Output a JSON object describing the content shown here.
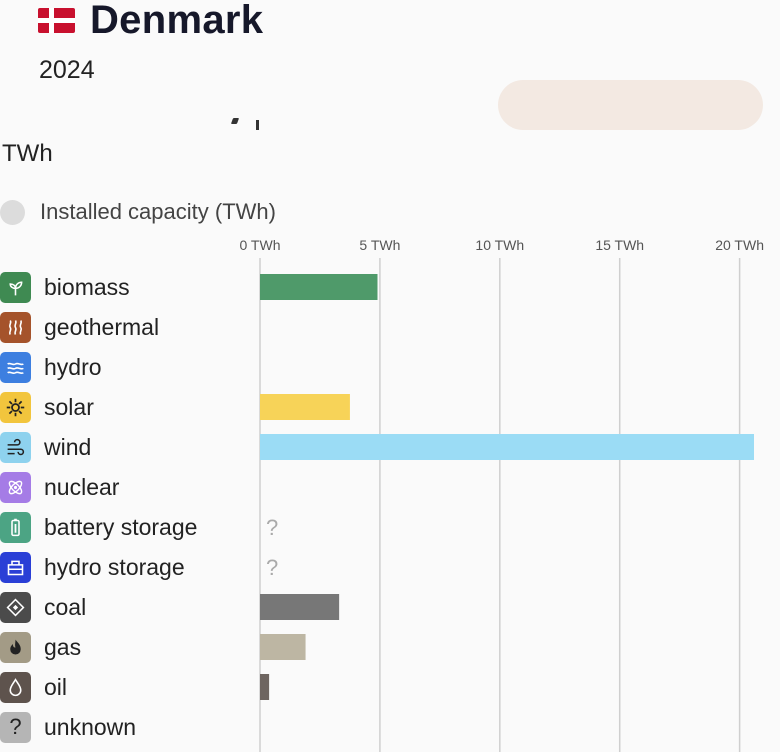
{
  "header": {
    "country": "Denmark",
    "year": "2024",
    "flag_colors": {
      "red": "#c8102e",
      "white": "#ffffff"
    }
  },
  "unit_label": "TWh",
  "legend": {
    "label": "Installed capacity (TWh)",
    "color": "#dcdcdc"
  },
  "chart_data": {
    "type": "bar",
    "orientation": "horizontal",
    "x_ticks": [
      {
        "value": 0,
        "label": "0 TWh"
      },
      {
        "value": 5,
        "label": "5 TWh"
      },
      {
        "value": 10,
        "label": "10 TWh"
      },
      {
        "value": 15,
        "label": "15 TWh"
      },
      {
        "value": 20,
        "label": "20 TWh"
      }
    ],
    "xlim": [
      0,
      20.6
    ],
    "grid": true,
    "categories": [
      {
        "name": "biomass",
        "value": 4.9,
        "color": "#4f9a6a",
        "icon": "sprout-icon",
        "icon_bg": "#3f8a52"
      },
      {
        "name": "geothermal",
        "value": null,
        "color": "#a0522d",
        "icon": "heat-waves-icon",
        "icon_bg": "#a5532b"
      },
      {
        "name": "hydro",
        "value": null,
        "color": "#3b7ddd",
        "icon": "water-waves-icon",
        "icon_bg": "#3d7fe0"
      },
      {
        "name": "solar",
        "value": 3.75,
        "color": "#f7d358",
        "icon": "sun-gear-icon",
        "icon_bg": "#f2c53d"
      },
      {
        "name": "wind",
        "value": 20.6,
        "color": "#9bdcf5",
        "icon": "wind-icon",
        "icon_bg": "#8ed2ee"
      },
      {
        "name": "nuclear",
        "value": null,
        "color": "#a97de8",
        "icon": "atom-icon",
        "icon_bg": "#a57ce6"
      },
      {
        "name": "battery storage",
        "value": null,
        "unknown": true,
        "unknown_mark": "?",
        "color": "#4ea88a",
        "icon": "battery-icon",
        "icon_bg": "#4ca484"
      },
      {
        "name": "hydro storage",
        "value": null,
        "unknown": true,
        "unknown_mark": "?",
        "color": "#2b3ed8",
        "icon": "hydro-storage-icon",
        "icon_bg": "#2a3fd6"
      },
      {
        "name": "coal",
        "value": 3.3,
        "color": "#777777",
        "icon": "coal-icon",
        "icon_bg": "#4b4b4b"
      },
      {
        "name": "gas",
        "value": 1.9,
        "color": "#bdb6a3",
        "icon": "flame-icon",
        "icon_bg": "#a39b86"
      },
      {
        "name": "oil",
        "value": 0.38,
        "color": "#6e6560",
        "icon": "droplet-icon",
        "icon_bg": "#5e534d"
      },
      {
        "name": "unknown",
        "value": null,
        "color": "#aaaaaa",
        "icon": "question-icon",
        "icon_bg": "#b5b5b5",
        "icon_text": "?"
      }
    ]
  }
}
